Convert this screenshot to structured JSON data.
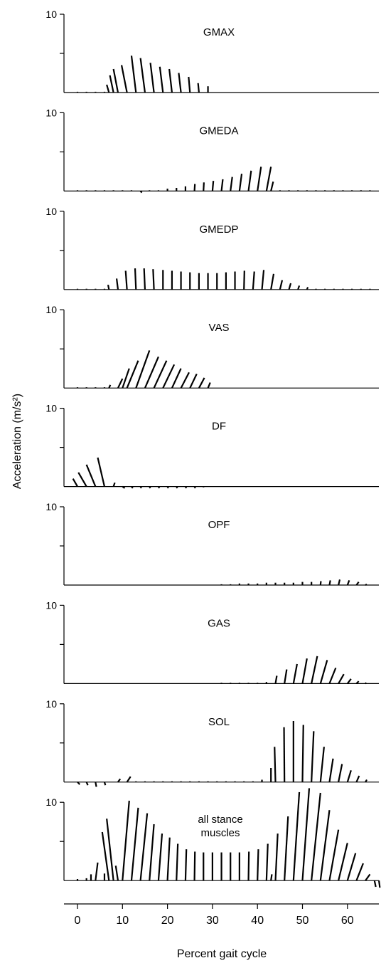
{
  "chart_data": {
    "type": "stick-figure",
    "xlabel": "Percent gait cycle",
    "ylabel": "Acceleration (m/s²)",
    "xlim": [
      -3,
      67
    ],
    "xticks": [
      0,
      10,
      20,
      30,
      40,
      50,
      60
    ],
    "ymax_label": "10",
    "panels": [
      {
        "name": "GMAX",
        "ylim": [
          0,
          10
        ],
        "x_range": [
          0,
          29
        ],
        "vectors": [
          [
            0,
            0,
            0.1
          ],
          [
            2,
            0,
            0.1
          ],
          [
            4,
            0,
            0.1
          ],
          [
            6,
            0,
            0.1
          ],
          [
            7,
            -0.5,
            1.0
          ],
          [
            8,
            -0.8,
            2.2
          ],
          [
            9,
            -1.0,
            3.0
          ],
          [
            11,
            -1.2,
            3.5
          ],
          [
            13,
            -1.0,
            4.7
          ],
          [
            15,
            -1.0,
            4.4
          ],
          [
            17,
            -0.8,
            3.8
          ],
          [
            19,
            -0.7,
            3.3
          ],
          [
            21,
            -0.6,
            3.0
          ],
          [
            23,
            -0.5,
            2.5
          ],
          [
            25,
            -0.3,
            2.0
          ],
          [
            27,
            -0.2,
            1.2
          ],
          [
            29,
            0,
            0.8
          ]
        ]
      },
      {
        "name": "GMEDA",
        "ylim": [
          0,
          10
        ],
        "x_range": [
          0,
          66
        ],
        "vectors": [
          [
            0,
            0,
            0.1
          ],
          [
            2,
            0,
            0.1
          ],
          [
            4,
            0,
            0.1
          ],
          [
            6,
            0,
            0.1
          ],
          [
            8,
            0,
            0.1
          ],
          [
            10,
            0,
            0.1
          ],
          [
            12,
            0,
            0.1
          ],
          [
            14,
            0.3,
            -0.2
          ],
          [
            16,
            0,
            0.1
          ],
          [
            18,
            0,
            0.1
          ],
          [
            20,
            0,
            0.3
          ],
          [
            22,
            0,
            0.4
          ],
          [
            24,
            0,
            0.6
          ],
          [
            26,
            0.1,
            0.9
          ],
          [
            28,
            0.1,
            1.1
          ],
          [
            30,
            0.2,
            1.3
          ],
          [
            32,
            0.3,
            1.5
          ],
          [
            34,
            0.4,
            1.8
          ],
          [
            36,
            0.5,
            2.2
          ],
          [
            38,
            0.6,
            2.6
          ],
          [
            40,
            0.8,
            3.1
          ],
          [
            42,
            1.0,
            3.1
          ],
          [
            43,
            0.5,
            1.2
          ],
          [
            45,
            0,
            0.1
          ],
          [
            47,
            0,
            0.1
          ],
          [
            49,
            0,
            0.1
          ],
          [
            51,
            0,
            0.1
          ],
          [
            53,
            0,
            0.1
          ],
          [
            55,
            0,
            0.1
          ],
          [
            57,
            0,
            0.1
          ],
          [
            59,
            0,
            0.1
          ],
          [
            61,
            0,
            0.1
          ],
          [
            63,
            0,
            0.1
          ],
          [
            65,
            0,
            0.1
          ]
        ]
      },
      {
        "name": "GMEDP",
        "ylim": [
          0,
          10
        ],
        "x_range": [
          0,
          66
        ],
        "vectors": [
          [
            0,
            0,
            0.1
          ],
          [
            2,
            0,
            0.1
          ],
          [
            4,
            0,
            0.1
          ],
          [
            6,
            0,
            0.1
          ],
          [
            7,
            -0.2,
            0.6
          ],
          [
            9,
            -0.3,
            1.4
          ],
          [
            11,
            -0.3,
            2.4
          ],
          [
            13,
            -0.2,
            2.7
          ],
          [
            15,
            -0.2,
            2.7
          ],
          [
            17,
            -0.2,
            2.6
          ],
          [
            19,
            0,
            2.5
          ],
          [
            21,
            0,
            2.4
          ],
          [
            23,
            0,
            2.3
          ],
          [
            25,
            0,
            2.2
          ],
          [
            27,
            0,
            2.1
          ],
          [
            29,
            0,
            2.1
          ],
          [
            31,
            0,
            2.1
          ],
          [
            33,
            0,
            2.2
          ],
          [
            35,
            0,
            2.3
          ],
          [
            37,
            0.1,
            2.4
          ],
          [
            39,
            0.3,
            2.3
          ],
          [
            41,
            0.4,
            2.5
          ],
          [
            43,
            0.6,
            2.0
          ],
          [
            45,
            0.5,
            1.2
          ],
          [
            47,
            0.4,
            0.8
          ],
          [
            49,
            0.3,
            0.5
          ],
          [
            51,
            0.2,
            0.3
          ],
          [
            53,
            0,
            0.1
          ],
          [
            55,
            0,
            0.1
          ],
          [
            57,
            0,
            0.1
          ],
          [
            59,
            0,
            0.1
          ],
          [
            61,
            0,
            0.1
          ],
          [
            63,
            0,
            0.1
          ],
          [
            65,
            0,
            0.1
          ]
        ]
      },
      {
        "name": "VAS",
        "ylim": [
          0,
          10
        ],
        "x_range": [
          0,
          29
        ],
        "vectors": [
          [
            0,
            0,
            0.1
          ],
          [
            2,
            0,
            0.1
          ],
          [
            4,
            0,
            0.1
          ],
          [
            6,
            0,
            0.1
          ],
          [
            7,
            0.3,
            0.4
          ],
          [
            9,
            1.0,
            1.2
          ],
          [
            10,
            1.5,
            2.5
          ],
          [
            11,
            2.5,
            3.5
          ],
          [
            13,
            3.0,
            4.8
          ],
          [
            15,
            3.0,
            4.0
          ],
          [
            17,
            2.8,
            3.5
          ],
          [
            19,
            2.5,
            3.0
          ],
          [
            21,
            2.0,
            2.5
          ],
          [
            23,
            1.8,
            2.0
          ],
          [
            25,
            1.5,
            1.8
          ],
          [
            27,
            1.2,
            1.3
          ],
          [
            29,
            0.5,
            0.7
          ]
        ]
      },
      {
        "name": "DF",
        "ylim": [
          0,
          10
        ],
        "x_range": [
          0,
          29
        ],
        "vectors": [
          [
            0,
            -1.0,
            1.0
          ],
          [
            2,
            -1.8,
            1.8
          ],
          [
            4,
            -2.0,
            2.8
          ],
          [
            6,
            -1.5,
            3.7
          ],
          [
            8,
            0.3,
            0.5
          ],
          [
            10,
            0.5,
            -0.2
          ],
          [
            12,
            0.3,
            -0.2
          ],
          [
            14,
            0.2,
            -0.2
          ],
          [
            16,
            0.2,
            -0.2
          ],
          [
            18,
            0.2,
            -0.2
          ],
          [
            20,
            0.2,
            -0.2
          ],
          [
            22,
            0.2,
            -0.2
          ],
          [
            24,
            0.2,
            -0.2
          ],
          [
            26,
            0.2,
            -0.2
          ],
          [
            28,
            0,
            -0.1
          ]
        ]
      },
      {
        "name": "OPF",
        "ylim": [
          0,
          10
        ],
        "x_range": [
          32,
          64
        ],
        "vectors": [
          [
            32,
            0,
            0.1
          ],
          [
            34,
            0,
            0.1
          ],
          [
            36,
            0,
            0.2
          ],
          [
            38,
            0,
            0.2
          ],
          [
            40,
            0,
            0.2
          ],
          [
            42,
            0,
            0.3
          ],
          [
            44,
            0,
            0.3
          ],
          [
            46,
            0,
            0.3
          ],
          [
            48,
            0,
            0.3
          ],
          [
            50,
            0,
            0.4
          ],
          [
            52,
            0,
            0.4
          ],
          [
            54,
            0.1,
            0.5
          ],
          [
            56,
            0.2,
            0.6
          ],
          [
            58,
            0.3,
            0.7
          ],
          [
            60,
            0.4,
            0.6
          ],
          [
            62,
            0.5,
            0.4
          ],
          [
            64,
            0.3,
            0.1
          ]
        ]
      },
      {
        "name": "GAS",
        "ylim": [
          0,
          10
        ],
        "x_range": [
          32,
          64
        ],
        "vectors": [
          [
            32,
            0,
            0.1
          ],
          [
            34,
            0,
            0.1
          ],
          [
            36,
            0,
            0.1
          ],
          [
            38,
            0,
            0.1
          ],
          [
            40,
            0,
            0.1
          ],
          [
            42,
            0,
            0.2
          ],
          [
            44,
            0.3,
            1.0
          ],
          [
            46,
            0.5,
            1.8
          ],
          [
            48,
            0.8,
            2.5
          ],
          [
            50,
            1.0,
            3.2
          ],
          [
            52,
            1.3,
            3.5
          ],
          [
            54,
            1.5,
            3.0
          ],
          [
            56,
            1.4,
            2.0
          ],
          [
            58,
            1.2,
            1.2
          ],
          [
            60,
            0.8,
            0.6
          ],
          [
            62,
            0.5,
            0.3
          ],
          [
            64,
            0.2,
            0.1
          ]
        ]
      },
      {
        "name": "SOL",
        "ylim": [
          0,
          10
        ],
        "x_range": [
          0,
          64
        ],
        "vectors": [
          [
            0,
            0.5,
            -0.3
          ],
          [
            2,
            0.3,
            -0.4
          ],
          [
            4,
            0.2,
            -0.6
          ],
          [
            6,
            0.2,
            -0.4
          ],
          [
            9,
            0.5,
            0.4
          ],
          [
            11,
            0.8,
            0.7
          ],
          [
            13,
            0,
            0.1
          ],
          [
            15,
            0,
            0.1
          ],
          [
            17,
            0,
            0.1
          ],
          [
            19,
            0,
            0.1
          ],
          [
            21,
            0,
            0.1
          ],
          [
            23,
            0,
            0.1
          ],
          [
            25,
            0,
            0.1
          ],
          [
            27,
            0,
            0.1
          ],
          [
            29,
            0,
            0.1
          ],
          [
            31,
            0,
            0.1
          ],
          [
            33,
            0,
            0.1
          ],
          [
            35,
            0,
            0.1
          ],
          [
            37,
            0,
            0.1
          ],
          [
            39,
            0,
            0.1
          ],
          [
            41,
            0,
            0.3
          ],
          [
            43,
            0,
            1.8
          ],
          [
            44,
            -0.2,
            4.5
          ],
          [
            46,
            -0.1,
            7.0
          ],
          [
            48,
            0,
            7.8
          ],
          [
            50,
            0.2,
            7.3
          ],
          [
            52,
            0.5,
            6.5
          ],
          [
            54,
            0.8,
            4.5
          ],
          [
            56,
            0.8,
            3.0
          ],
          [
            58,
            0.8,
            2.3
          ],
          [
            60,
            0.8,
            1.5
          ],
          [
            62,
            0.6,
            0.8
          ],
          [
            64,
            0.3,
            0.3
          ]
        ]
      },
      {
        "name": "all stance muscles",
        "ylim": [
          0,
          10
        ],
        "x_range": [
          0,
          67
        ],
        "vectors": [
          [
            0,
            0,
            0.2
          ],
          [
            2,
            0,
            0.3
          ],
          [
            3,
            0,
            0.8
          ],
          [
            4,
            0.5,
            2.3
          ],
          [
            6,
            0,
            0.9
          ],
          [
            7,
            -1.5,
            6.2
          ],
          [
            8,
            -1.5,
            7.9
          ],
          [
            9,
            -0.5,
            1.9
          ],
          [
            10,
            1.5,
            10.2
          ],
          [
            12,
            1.5,
            9.3
          ],
          [
            14,
            1.5,
            8.6
          ],
          [
            16,
            1.0,
            7.2
          ],
          [
            18,
            0.8,
            6.0
          ],
          [
            20,
            0.5,
            5.5
          ],
          [
            22,
            0.3,
            4.7
          ],
          [
            24,
            0.2,
            4.0
          ],
          [
            26,
            0.1,
            3.7
          ],
          [
            28,
            0,
            3.6
          ],
          [
            30,
            0,
            3.6
          ],
          [
            32,
            0,
            3.6
          ],
          [
            34,
            0,
            3.6
          ],
          [
            36,
            0,
            3.6
          ],
          [
            38,
            0.1,
            3.7
          ],
          [
            40,
            0.2,
            4.0
          ],
          [
            42,
            0.3,
            4.7
          ],
          [
            43,
            0.2,
            0.8
          ],
          [
            44,
            0.5,
            6.0
          ],
          [
            46,
            0.8,
            8.2
          ],
          [
            48,
            1.3,
            11.3
          ],
          [
            50,
            1.5,
            11.8
          ],
          [
            52,
            2.0,
            11.2
          ],
          [
            54,
            2.0,
            9.0
          ],
          [
            56,
            2.0,
            6.5
          ],
          [
            58,
            2.0,
            4.8
          ],
          [
            60,
            1.8,
            3.5
          ],
          [
            62,
            1.5,
            2.2
          ],
          [
            64,
            1.0,
            0.8
          ],
          [
            66,
            0.3,
            -0.8
          ],
          [
            67,
            0.2,
            -0.9
          ]
        ]
      }
    ]
  }
}
